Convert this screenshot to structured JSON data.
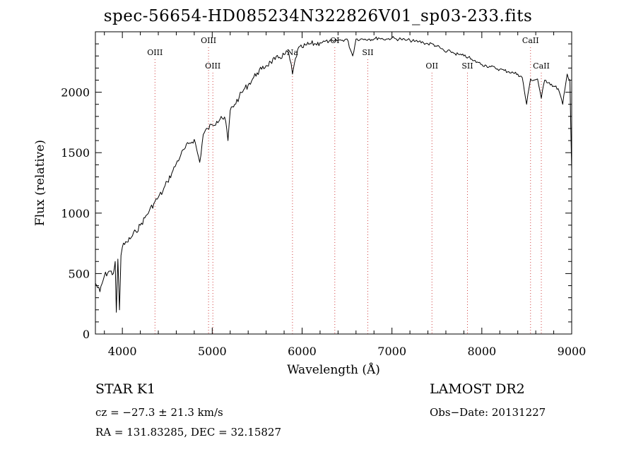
{
  "chart_data": {
    "type": "line",
    "title": "spec-56654-HD085234N322826V01_sp03-233.fits",
    "xlabel": "Wavelength (Å)",
    "ylabel": "Flux (relative)",
    "xlim": [
      3700,
      9000
    ],
    "ylim": [
      0,
      2500
    ],
    "x_ticks": [
      "4000",
      "5000",
      "6000",
      "7000",
      "8000",
      "9000"
    ],
    "y_ticks": [
      "0",
      "500",
      "1000",
      "1500",
      "2000"
    ],
    "grid": false,
    "series": [
      {
        "x": [
          3700,
          3750,
          3800,
          3850,
          3900,
          3920,
          3933,
          3950,
          3968,
          3985,
          4000,
          4050,
          4100,
          4150,
          4200,
          4250,
          4300,
          4350,
          4400,
          4450,
          4500,
          4550,
          4600,
          4650,
          4700,
          4750,
          4800,
          4861,
          4900,
          4950,
          5000,
          5050,
          5100,
          5150,
          5175,
          5200,
          5250,
          5300,
          5350,
          5400,
          5450,
          5500,
          5550,
          5600,
          5650,
          5700,
          5750,
          5800,
          5850,
          5893,
          5950,
          6000,
          6050,
          6100,
          6150,
          6200,
          6250,
          6300,
          6350,
          6400,
          6450,
          6500,
          6563,
          6600,
          6650,
          6700,
          6750,
          6800,
          6850,
          6900,
          6950,
          7000,
          7050,
          7100,
          7150,
          7200,
          7250,
          7300,
          7350,
          7400,
          7450,
          7500,
          7550,
          7600,
          7650,
          7700,
          7750,
          7800,
          7850,
          7900,
          7950,
          8000,
          8050,
          8100,
          8150,
          8200,
          8250,
          8300,
          8350,
          8400,
          8450,
          8498,
          8542,
          8580,
          8620,
          8662,
          8700,
          8750,
          8800,
          8850,
          8900,
          8950,
          8980,
          9000
        ],
        "y": [
          420,
          350,
          480,
          520,
          500,
          600,
          180,
          620,
          200,
          650,
          720,
          760,
          800,
          850,
          900,
          960,
          1020,
          1080,
          1130,
          1180,
          1260,
          1330,
          1410,
          1480,
          1540,
          1580,
          1610,
          1420,
          1650,
          1700,
          1730,
          1760,
          1800,
          1760,
          1600,
          1850,
          1900,
          1960,
          2020,
          2060,
          2110,
          2160,
          2190,
          2220,
          2250,
          2270,
          2290,
          2310,
          2330,
          2150,
          2350,
          2370,
          2390,
          2400,
          2400,
          2410,
          2420,
          2420,
          2420,
          2430,
          2430,
          2440,
          2300,
          2440,
          2440,
          2440,
          2440,
          2440,
          2450,
          2440,
          2440,
          2450,
          2440,
          2440,
          2430,
          2430,
          2420,
          2420,
          2410,
          2400,
          2400,
          2380,
          2360,
          2330,
          2340,
          2320,
          2310,
          2300,
          2290,
          2260,
          2250,
          2230,
          2220,
          2210,
          2200,
          2190,
          2180,
          2170,
          2160,
          2150,
          2120,
          1900,
          2110,
          2100,
          2110,
          1950,
          2100,
          2080,
          2050,
          2030,
          1900,
          2150,
          2100,
          1350
        ]
      }
    ],
    "annotations": [
      {
        "label": "OIII",
        "x": 4363,
        "row": "low"
      },
      {
        "label": "OIII",
        "x": 4959,
        "row": "high"
      },
      {
        "label": "OIII",
        "x": 5007,
        "row": "mid"
      },
      {
        "label": "Na",
        "x": 5893,
        "row": "low"
      },
      {
        "label": "OI",
        "x": 6364,
        "row": "high"
      },
      {
        "label": "SII",
        "x": 6731,
        "row": "low"
      },
      {
        "label": "OII",
        "x": 7445,
        "row": "mid"
      },
      {
        "label": "SII",
        "x": 7840,
        "row": "mid"
      },
      {
        "label": "CaII",
        "x": 8542,
        "row": "high"
      },
      {
        "label": "CaII",
        "x": 8662,
        "row": "mid"
      }
    ]
  },
  "info": {
    "object": "STAR    K1",
    "survey": "LAMOST  DR2",
    "cz": "cz = −27.3 ± 21.3 km/s",
    "obs_date": "Obs−Date: 20131227",
    "radec": "RA = 131.83285, DEC =  32.15827"
  },
  "colors": {
    "line": "#000000",
    "marker_line": "#d04040",
    "background": "#ffffff"
  }
}
